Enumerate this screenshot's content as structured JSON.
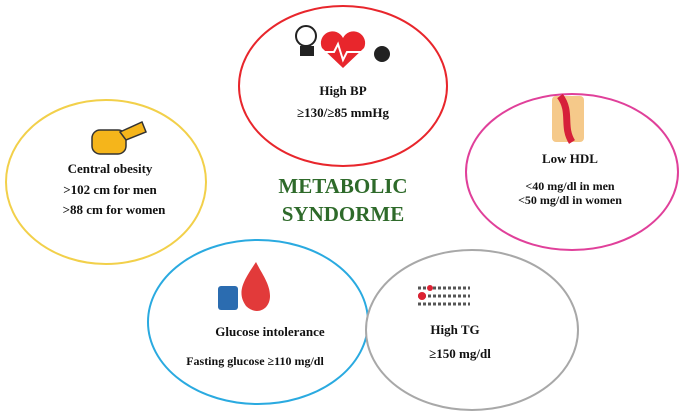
{
  "title": {
    "lines": [
      "METABOLIC",
      "SYNDORME"
    ]
  },
  "nodes": [
    {
      "label": "High BP",
      "criteria": [
        "≥130/≥85 mmHg"
      ]
    },
    {
      "label": "Central obesity",
      "criteria": [
        ">102 cm for men",
        ">88 cm for women"
      ]
    },
    {
      "label": "Low HDL",
      "criteria": [
        "<40 mg/dl in men",
        "<50 mg/dl in women"
      ]
    },
    {
      "label": "Glucose intolerance",
      "criteria": [
        "Fasting glucose ≥110 mg/dl"
      ]
    },
    {
      "label": "High TG",
      "criteria": [
        "≥150 mg/dl"
      ]
    }
  ]
}
